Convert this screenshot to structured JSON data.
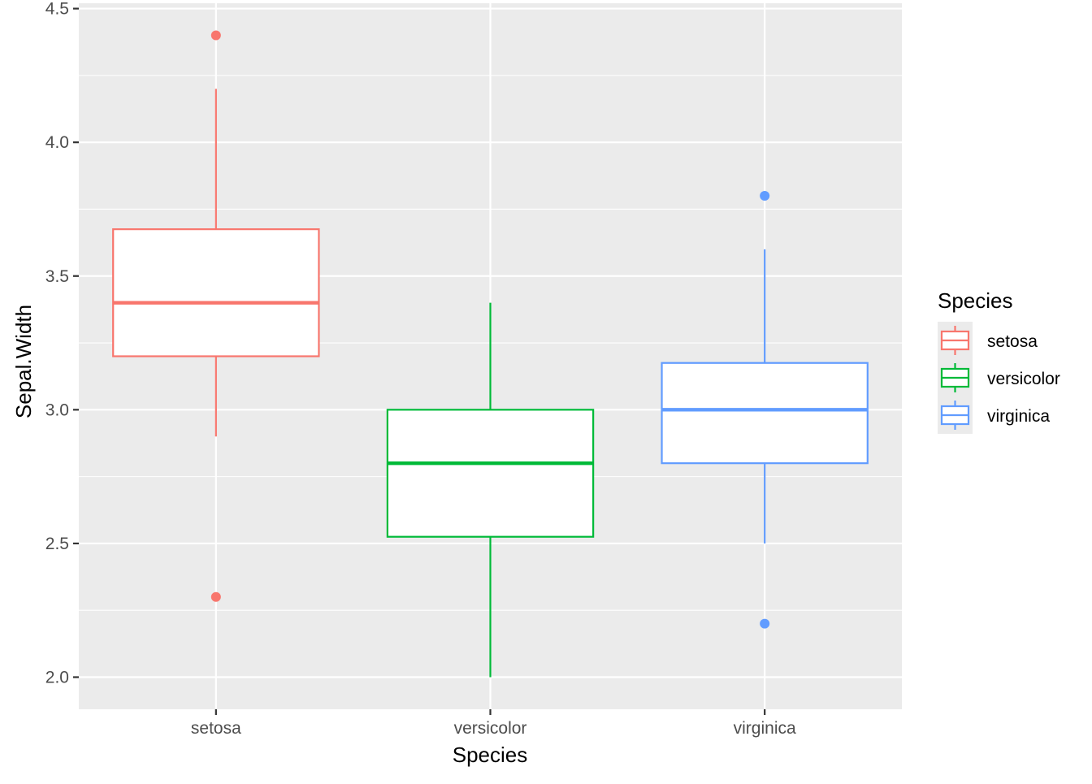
{
  "chart_data": {
    "type": "boxplot",
    "xlabel": "Species",
    "ylabel": "Sepal.Width",
    "categories": [
      "setosa",
      "versicolor",
      "virginica"
    ],
    "ylim": [
      1.88,
      4.52
    ],
    "y_ticks": [
      2.0,
      2.5,
      3.0,
      3.5,
      4.0,
      4.5
    ],
    "y_tick_labels": [
      "2.0",
      "2.5",
      "3.0",
      "3.5",
      "4.0",
      "4.5"
    ],
    "grid": true,
    "legend": {
      "title": "Species",
      "position": "right",
      "entries": [
        "setosa",
        "versicolor",
        "virginica"
      ]
    },
    "colors": {
      "setosa": "#F8766D",
      "versicolor": "#00BA38",
      "virginica": "#619CFF",
      "panel": "#EBEBEB",
      "grid": "#FFFFFF"
    },
    "series": [
      {
        "category": "setosa",
        "lower_whisker": 2.9,
        "q1": 3.2,
        "median": 3.4,
        "q3": 3.675,
        "upper_whisker": 4.2,
        "outliers": [
          4.4,
          2.3
        ]
      },
      {
        "category": "versicolor",
        "lower_whisker": 2.0,
        "q1": 2.525,
        "median": 2.8,
        "q3": 3.0,
        "upper_whisker": 3.4,
        "outliers": []
      },
      {
        "category": "virginica",
        "lower_whisker": 2.5,
        "q1": 2.8,
        "median": 3.0,
        "q3": 3.175,
        "upper_whisker": 3.6,
        "outliers": [
          3.8,
          2.2
        ]
      }
    ]
  }
}
